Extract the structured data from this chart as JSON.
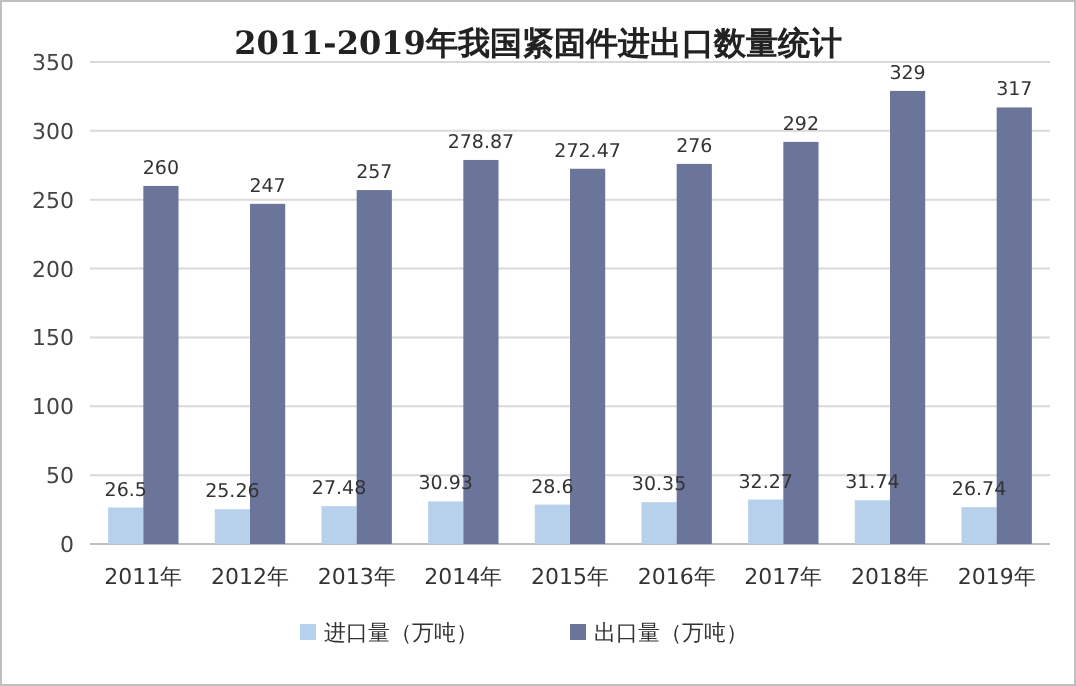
{
  "chart_data": {
    "type": "bar",
    "title": "2011-2019年我国紧固件进出口数量统计",
    "categories": [
      "2011年",
      "2012年",
      "2013年",
      "2014年",
      "2015年",
      "2016年",
      "2017年",
      "2018年",
      "2019年"
    ],
    "series": [
      {
        "name": "进口量（万吨）",
        "color": "#b7d0ec",
        "values": [
          26.5,
          25.26,
          27.48,
          30.93,
          28.6,
          30.35,
          32.27,
          31.74,
          26.74
        ]
      },
      {
        "name": "出口量（万吨）",
        "color": "#6b7499",
        "values": [
          260,
          247,
          257,
          278.87,
          272.47,
          276,
          292,
          329,
          317
        ]
      }
    ],
    "ylim": [
      0,
      350
    ],
    "yticks": [
      0,
      50,
      100,
      150,
      200,
      250,
      300,
      350
    ],
    "grid": "y",
    "legend": "bottom",
    "data_labels": true
  }
}
